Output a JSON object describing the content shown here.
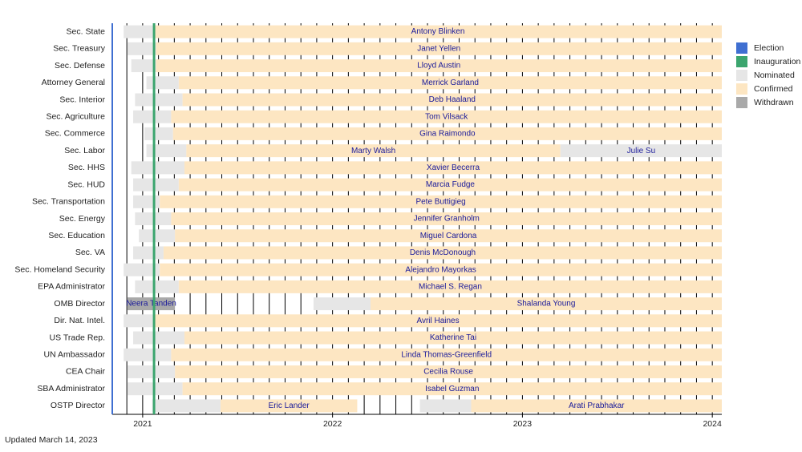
{
  "chart_data": {
    "type": "timeline",
    "footnote": "Updated March 14, 2023",
    "xlim": [
      2020.84,
      2024.05
    ],
    "xticks": [
      2021,
      2022,
      2023,
      2024
    ],
    "grid": true,
    "markers": [
      {
        "name": "Election",
        "color": "#3f6fd1",
        "x": 2020.84
      },
      {
        "name": "Inauguration",
        "color": "#3ba56e",
        "x": 2021.06
      }
    ],
    "statuses": [
      {
        "name": "Nominated",
        "color": "#e6e6e6"
      },
      {
        "name": "Confirmed",
        "color": "#fde6c2"
      },
      {
        "name": "Withdrawn",
        "color": "#a9a9a9"
      }
    ],
    "categories": [
      "Sec. State",
      "Sec. Treasury",
      "Sec. Defense",
      "Attorney General",
      "Sec. Interior",
      "Sec. Agriculture",
      "Sec. Commerce",
      "Sec. Labor",
      "Sec. HHS",
      "Sec. HUD",
      "Sec. Transportation",
      "Sec. Energy",
      "Sec. Education",
      "Sec. VA",
      "Sec. Homeland Security",
      "EPA Administrator",
      "OMB Director",
      "Dir. Nat. Intel.",
      "US Trade Rep.",
      "UN Ambassador",
      "CEA Chair",
      "SBA Administrator",
      "OSTP Director"
    ],
    "rows": [
      {
        "segments": [
          {
            "status": "Nominated",
            "start": 2020.9,
            "end": 2021.06
          },
          {
            "status": "Confirmed",
            "start": 2021.06,
            "end": 2024.05,
            "label": "Antony Blinken"
          }
        ]
      },
      {
        "segments": [
          {
            "status": "Nominated",
            "start": 2020.92,
            "end": 2021.07
          },
          {
            "status": "Confirmed",
            "start": 2021.07,
            "end": 2024.05,
            "label": "Janet Yellen"
          }
        ]
      },
      {
        "segments": [
          {
            "status": "Nominated",
            "start": 2020.94,
            "end": 2021.07
          },
          {
            "status": "Confirmed",
            "start": 2021.07,
            "end": 2024.05,
            "label": "Lloyd Austin"
          }
        ]
      },
      {
        "segments": [
          {
            "status": "Nominated",
            "start": 2021.02,
            "end": 2021.19
          },
          {
            "status": "Confirmed",
            "start": 2021.19,
            "end": 2024.05,
            "label": "Merrick Garland"
          }
        ]
      },
      {
        "segments": [
          {
            "status": "Nominated",
            "start": 2020.96,
            "end": 2021.21
          },
          {
            "status": "Confirmed",
            "start": 2021.21,
            "end": 2024.05,
            "label": "Deb Haaland"
          }
        ]
      },
      {
        "segments": [
          {
            "status": "Nominated",
            "start": 2020.95,
            "end": 2021.15
          },
          {
            "status": "Confirmed",
            "start": 2021.15,
            "end": 2024.05,
            "label": "Tom Vilsack"
          }
        ]
      },
      {
        "segments": [
          {
            "status": "Nominated",
            "start": 2021.01,
            "end": 2021.16
          },
          {
            "status": "Confirmed",
            "start": 2021.16,
            "end": 2024.05,
            "label": "Gina Raimondo"
          }
        ]
      },
      {
        "segments": [
          {
            "status": "Nominated",
            "start": 2021.02,
            "end": 2021.23
          },
          {
            "status": "Confirmed",
            "start": 2021.23,
            "end": 2023.2,
            "label": "Marty Walsh"
          },
          {
            "status": "Nominated",
            "start": 2023.2,
            "end": 2024.05,
            "label": "Julie Su"
          }
        ]
      },
      {
        "segments": [
          {
            "status": "Nominated",
            "start": 2020.94,
            "end": 2021.22
          },
          {
            "status": "Confirmed",
            "start": 2021.22,
            "end": 2024.05,
            "label": "Xavier Becerra"
          }
        ]
      },
      {
        "segments": [
          {
            "status": "Nominated",
            "start": 2020.95,
            "end": 2021.19
          },
          {
            "status": "Confirmed",
            "start": 2021.19,
            "end": 2024.05,
            "label": "Marcia Fudge"
          }
        ]
      },
      {
        "segments": [
          {
            "status": "Nominated",
            "start": 2020.95,
            "end": 2021.09
          },
          {
            "status": "Confirmed",
            "start": 2021.09,
            "end": 2024.05,
            "label": "Pete Buttigieg"
          }
        ]
      },
      {
        "segments": [
          {
            "status": "Nominated",
            "start": 2020.96,
            "end": 2021.15
          },
          {
            "status": "Confirmed",
            "start": 2021.15,
            "end": 2024.05,
            "label": "Jennifer Granholm"
          }
        ]
      },
      {
        "segments": [
          {
            "status": "Nominated",
            "start": 2020.98,
            "end": 2021.17
          },
          {
            "status": "Confirmed",
            "start": 2021.17,
            "end": 2024.05,
            "label": "Miguel Cardona"
          }
        ]
      },
      {
        "segments": [
          {
            "status": "Nominated",
            "start": 2020.95,
            "end": 2021.11
          },
          {
            "status": "Confirmed",
            "start": 2021.11,
            "end": 2024.05,
            "label": "Denis McDonough"
          }
        ]
      },
      {
        "segments": [
          {
            "status": "Nominated",
            "start": 2020.9,
            "end": 2021.09
          },
          {
            "status": "Confirmed",
            "start": 2021.09,
            "end": 2024.05,
            "label": "Alejandro Mayorkas"
          }
        ]
      },
      {
        "segments": [
          {
            "status": "Nominated",
            "start": 2020.96,
            "end": 2021.19
          },
          {
            "status": "Confirmed",
            "start": 2021.19,
            "end": 2024.05,
            "label": "Michael S. Regan"
          }
        ]
      },
      {
        "segments": [
          {
            "status": "Withdrawn",
            "start": 2020.92,
            "end": 2021.17,
            "label": "Neera Tanden"
          },
          {
            "status": "Nominated",
            "start": 2021.9,
            "end": 2022.2
          },
          {
            "status": "Confirmed",
            "start": 2022.2,
            "end": 2024.05,
            "label": "Shalanda Young"
          }
        ]
      },
      {
        "segments": [
          {
            "status": "Nominated",
            "start": 2020.9,
            "end": 2021.06
          },
          {
            "status": "Confirmed",
            "start": 2021.06,
            "end": 2024.05,
            "label": "Avril Haines"
          }
        ]
      },
      {
        "segments": [
          {
            "status": "Nominated",
            "start": 2020.95,
            "end": 2021.22
          },
          {
            "status": "Confirmed",
            "start": 2021.22,
            "end": 2024.05,
            "label": "Katherine Tai"
          }
        ]
      },
      {
        "segments": [
          {
            "status": "Nominated",
            "start": 2020.9,
            "end": 2021.15
          },
          {
            "status": "Confirmed",
            "start": 2021.15,
            "end": 2024.05,
            "label": "Linda Thomas-Greenfield"
          }
        ]
      },
      {
        "segments": [
          {
            "status": "Nominated",
            "start": 2020.92,
            "end": 2021.17
          },
          {
            "status": "Confirmed",
            "start": 2021.17,
            "end": 2024.05,
            "label": "Cecilia Rouse"
          }
        ]
      },
      {
        "segments": [
          {
            "status": "Nominated",
            "start": 2020.92,
            "end": 2021.21
          },
          {
            "status": "Confirmed",
            "start": 2021.21,
            "end": 2024.05,
            "label": "Isabel Guzman"
          }
        ]
      },
      {
        "segments": [
          {
            "status": "Nominated",
            "start": 2021.05,
            "end": 2021.41
          },
          {
            "status": "Confirmed",
            "start": 2021.41,
            "end": 2022.13,
            "label": "Eric Lander"
          },
          {
            "status": "Nominated",
            "start": 2022.46,
            "end": 2022.73
          },
          {
            "status": "Confirmed",
            "start": 2022.73,
            "end": 2024.05,
            "label": "Arati Prabhakar"
          }
        ]
      }
    ]
  }
}
